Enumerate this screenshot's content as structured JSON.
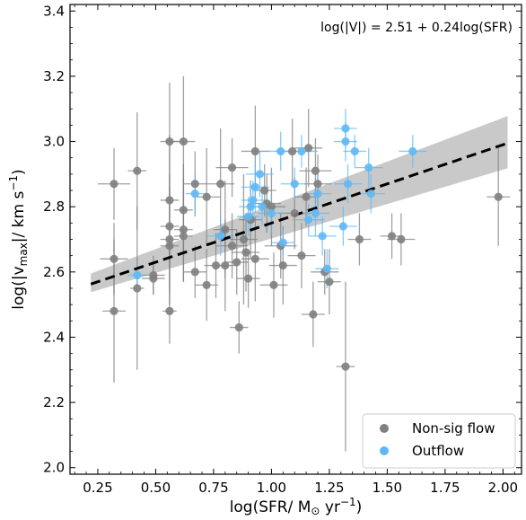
{
  "chart_data": {
    "type": "scatter",
    "annotation": "log(|V|) = 2.51 + 0.24log(SFR)",
    "xlabel": "log(SFR/ M",
    "xlabel_unit": " yr",
    "xlabel_exp": "−1",
    "xlabel_close": ")",
    "ylabel_a": "log(|v",
    "ylabel_sub": "max",
    "ylabel_b": "|/ km s",
    "ylabel_exp": "−1",
    "ylabel_close": ")",
    "xlim": [
      0.13,
      2.08
    ],
    "ylim": [
      1.98,
      3.42
    ],
    "x_ticks": [
      0.25,
      0.5,
      0.75,
      1.0,
      1.25,
      1.5,
      1.75,
      2.0
    ],
    "x_tick_labels": [
      "0.25",
      "0.50",
      "0.75",
      "1.00",
      "1.25",
      "1.50",
      "1.75",
      "2.00"
    ],
    "y_ticks": [
      2.0,
      2.2,
      2.4,
      2.6,
      2.8,
      3.0,
      3.2,
      3.4
    ],
    "y_tick_labels": [
      "2.0",
      "2.2",
      "2.4",
      "2.6",
      "2.8",
      "3.0",
      "3.2",
      "3.4"
    ],
    "fit": {
      "intercept": 2.51,
      "slope": 0.24,
      "x_range": [
        0.22,
        2.02
      ]
    },
    "band": {
      "x": [
        0.22,
        2.02
      ],
      "upper": [
        2.595,
        3.078
      ],
      "lower": [
        2.538,
        2.918
      ]
    },
    "legend_position": "lower-right",
    "series": [
      {
        "name": "Non-sig flow",
        "color": "#808080",
        "points": [
          [
            0.32,
            2.87,
            0.07,
            0.11
          ],
          [
            0.32,
            2.64,
            0.06,
            0.11
          ],
          [
            0.32,
            2.48,
            0.05,
            0.22
          ],
          [
            0.42,
            2.91,
            0.04,
            0.18
          ],
          [
            0.42,
            2.55,
            0.03,
            0.25
          ],
          [
            0.49,
            2.59,
            0.05,
            0.06
          ],
          [
            0.49,
            2.58,
            0.05,
            0.05
          ],
          [
            0.56,
            3.0,
            0.04,
            0.18
          ],
          [
            0.56,
            2.82,
            0.04,
            0.2
          ],
          [
            0.56,
            2.74,
            0.04,
            0.16
          ],
          [
            0.56,
            2.7,
            0.04,
            0.16
          ],
          [
            0.56,
            2.68,
            0.04,
            0.18
          ],
          [
            0.56,
            2.48,
            0.03,
            0.1
          ],
          [
            0.62,
            3.0,
            0.05,
            0.2
          ],
          [
            0.62,
            2.79,
            0.04,
            0.14
          ],
          [
            0.62,
            2.73,
            0.04,
            0.16
          ],
          [
            0.62,
            2.71,
            0.04,
            0.14
          ],
          [
            0.67,
            2.87,
            0.05,
            0.1
          ],
          [
            0.67,
            2.6,
            0.05,
            0.08
          ],
          [
            0.72,
            2.83,
            0.06,
            0.15
          ],
          [
            0.72,
            2.56,
            0.05,
            0.11
          ],
          [
            0.76,
            2.62,
            0.05,
            0.1
          ],
          [
            0.78,
            2.87,
            0.06,
            0.17
          ],
          [
            0.8,
            2.73,
            0.05,
            0.15
          ],
          [
            0.8,
            2.62,
            0.05,
            0.14
          ],
          [
            0.83,
            2.92,
            0.07,
            0.09
          ],
          [
            0.83,
            2.68,
            0.07,
            0.1
          ],
          [
            0.85,
            2.63,
            0.05,
            0.1
          ],
          [
            0.86,
            2.43,
            0.04,
            0.08
          ],
          [
            0.88,
            2.7,
            0.06,
            0.2
          ],
          [
            0.89,
            2.66,
            0.06,
            0.12
          ],
          [
            0.9,
            2.58,
            0.05,
            0.09
          ],
          [
            0.91,
            2.76,
            0.05,
            0.12
          ],
          [
            0.93,
            2.97,
            0.06,
            0.14
          ],
          [
            0.93,
            2.64,
            0.06,
            0.13
          ],
          [
            0.97,
            2.85,
            0.05,
            0.08
          ],
          [
            0.98,
            2.81,
            0.06,
            0.09
          ],
          [
            1.0,
            2.8,
            0.06,
            0.12
          ],
          [
            1.01,
            2.56,
            0.06,
            0.1
          ],
          [
            1.04,
            2.68,
            0.07,
            0.1
          ],
          [
            1.05,
            2.62,
            0.06,
            0.12
          ],
          [
            1.09,
            2.97,
            0.07,
            0.1
          ],
          [
            1.1,
            2.78,
            0.07,
            0.11
          ],
          [
            1.13,
            2.65,
            0.06,
            0.1
          ],
          [
            1.15,
            2.83,
            0.05,
            0.09
          ],
          [
            1.16,
            2.98,
            0.06,
            0.12
          ],
          [
            1.18,
            2.47,
            0.05,
            0.1
          ],
          [
            1.19,
            2.91,
            0.07,
            0.1
          ],
          [
            1.2,
            2.87,
            0.06,
            0.09
          ],
          [
            1.23,
            2.6,
            0.06,
            0.07
          ],
          [
            1.25,
            2.57,
            0.05,
            0.1
          ],
          [
            1.32,
            2.31,
            0.04,
            0.26
          ],
          [
            1.38,
            2.7,
            0.05,
            0.08
          ],
          [
            1.52,
            2.71,
            0.05,
            0.07
          ],
          [
            1.56,
            2.7,
            0.06,
            0.08
          ],
          [
            1.98,
            2.83,
            0.05,
            0.15
          ]
        ]
      },
      {
        "name": "Outflow",
        "color": "#5fb8f5",
        "points": [
          [
            0.42,
            2.59,
            0.04,
            0.03
          ],
          [
            0.67,
            2.84,
            0.04,
            0.06
          ],
          [
            0.78,
            2.71,
            0.06,
            0.06
          ],
          [
            0.9,
            2.77,
            0.05,
            0.06
          ],
          [
            0.91,
            2.8,
            0.05,
            0.07
          ],
          [
            0.92,
            2.82,
            0.05,
            0.06
          ],
          [
            0.93,
            2.86,
            0.06,
            0.08
          ],
          [
            0.95,
            2.9,
            0.06,
            0.07
          ],
          [
            0.96,
            2.8,
            0.05,
            0.06
          ],
          [
            1.0,
            2.78,
            0.06,
            0.06
          ],
          [
            1.04,
            2.97,
            0.06,
            0.06
          ],
          [
            1.05,
            2.69,
            0.05,
            0.04
          ],
          [
            1.1,
            2.87,
            0.06,
            0.05
          ],
          [
            1.13,
            2.97,
            0.07,
            0.05
          ],
          [
            1.16,
            2.76,
            0.07,
            0.05
          ],
          [
            1.19,
            2.78,
            0.06,
            0.07
          ],
          [
            1.2,
            2.84,
            0.06,
            0.06
          ],
          [
            1.22,
            2.71,
            0.06,
            0.06
          ],
          [
            1.24,
            2.61,
            0.05,
            0.06
          ],
          [
            1.31,
            2.74,
            0.06,
            0.06
          ],
          [
            1.32,
            3.04,
            0.05,
            0.06
          ],
          [
            1.32,
            3.0,
            0.05,
            0.06
          ],
          [
            1.33,
            2.87,
            0.06,
            0.06
          ],
          [
            1.36,
            2.97,
            0.05,
            0.05
          ],
          [
            1.42,
            2.92,
            0.06,
            0.06
          ],
          [
            1.43,
            2.84,
            0.06,
            0.06
          ],
          [
            1.61,
            2.97,
            0.06,
            0.05
          ]
        ]
      }
    ]
  }
}
